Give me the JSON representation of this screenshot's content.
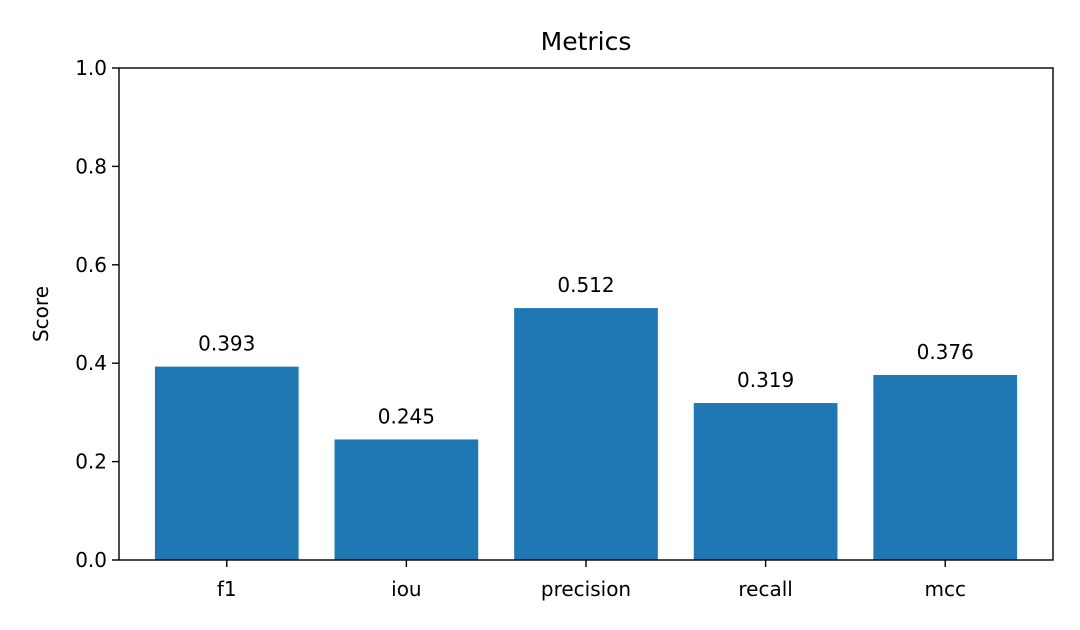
{
  "chart_data": {
    "type": "bar",
    "title": "Metrics",
    "xlabel": "",
    "ylabel": "Score",
    "categories": [
      "f1",
      "iou",
      "precision",
      "recall",
      "mcc"
    ],
    "values": [
      0.393,
      0.245,
      0.512,
      0.319,
      0.376
    ],
    "value_labels": [
      "0.393",
      "0.245",
      "0.512",
      "0.319",
      "0.376"
    ],
    "ylim": [
      0,
      1
    ],
    "yticks": [
      0,
      0.2,
      0.4,
      0.6,
      0.8,
      1
    ],
    "ytick_labels": [
      "0.0",
      "0.2",
      "0.4",
      "0.6",
      "0.8",
      "1.0"
    ],
    "bar_color": "#1f77b4",
    "grid": false,
    "legend": "none"
  }
}
